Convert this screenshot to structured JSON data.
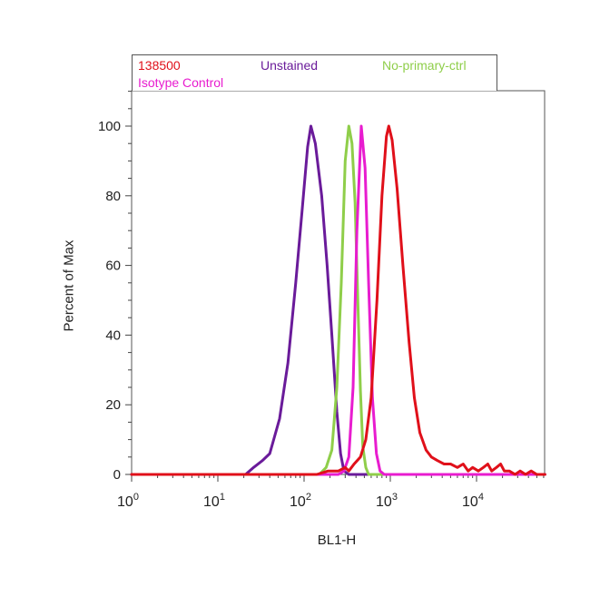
{
  "chart_data": {
    "type": "line",
    "title": "",
    "xlabel": "BL1-H",
    "ylabel": "Percent of Max",
    "x_scale": "log",
    "xlim": [
      1,
      63000
    ],
    "ylim": [
      0,
      110
    ],
    "x_ticks": [
      {
        "value": 1,
        "base": "10",
        "exp": "0"
      },
      {
        "value": 10,
        "base": "10",
        "exp": "1"
      },
      {
        "value": 100,
        "base": "10",
        "exp": "2"
      },
      {
        "value": 1000,
        "base": "10",
        "exp": "3"
      },
      {
        "value": 10000,
        "base": "10",
        "exp": "4"
      }
    ],
    "y_ticks": [
      0,
      20,
      40,
      60,
      80,
      100
    ],
    "legend_position": "top",
    "series": [
      {
        "name": "Unstained",
        "color": "#6a1b9a",
        "points": [
          [
            1,
            0
          ],
          [
            21,
            0
          ],
          [
            26,
            2
          ],
          [
            33,
            4
          ],
          [
            40,
            6
          ],
          [
            52,
            16
          ],
          [
            65,
            32
          ],
          [
            80,
            55
          ],
          [
            95,
            76
          ],
          [
            110,
            94
          ],
          [
            120,
            100
          ],
          [
            135,
            95
          ],
          [
            160,
            80
          ],
          [
            185,
            60
          ],
          [
            210,
            40
          ],
          [
            240,
            18
          ],
          [
            265,
            6
          ],
          [
            290,
            1
          ],
          [
            330,
            0
          ],
          [
            62000,
            0
          ]
        ]
      },
      {
        "name": "No-primary-ctrl",
        "color": "#8fce4a",
        "points": [
          [
            1,
            0
          ],
          [
            150,
            0
          ],
          [
            180,
            2
          ],
          [
            210,
            7
          ],
          [
            240,
            25
          ],
          [
            270,
            55
          ],
          [
            300,
            90
          ],
          [
            330,
            100
          ],
          [
            360,
            95
          ],
          [
            390,
            78
          ],
          [
            420,
            50
          ],
          [
            450,
            24
          ],
          [
            480,
            8
          ],
          [
            520,
            2
          ],
          [
            560,
            0
          ],
          [
            62000,
            0
          ]
        ]
      },
      {
        "name": "Isotype Control",
        "color": "#e81ccf",
        "points": [
          [
            1,
            0
          ],
          [
            250,
            0
          ],
          [
            290,
            1
          ],
          [
            330,
            5
          ],
          [
            370,
            25
          ],
          [
            410,
            70
          ],
          [
            460,
            100
          ],
          [
            510,
            88
          ],
          [
            560,
            55
          ],
          [
            620,
            22
          ],
          [
            690,
            6
          ],
          [
            760,
            1
          ],
          [
            850,
            0
          ],
          [
            62000,
            0
          ]
        ]
      },
      {
        "name": "138500",
        "color": "#e0101a",
        "points": [
          [
            1,
            0
          ],
          [
            140,
            0
          ],
          [
            190,
            1
          ],
          [
            250,
            1
          ],
          [
            300,
            2
          ],
          [
            330,
            1
          ],
          [
            380,
            3
          ],
          [
            450,
            5
          ],
          [
            520,
            10
          ],
          [
            600,
            22
          ],
          [
            700,
            50
          ],
          [
            800,
            80
          ],
          [
            900,
            97
          ],
          [
            960,
            100
          ],
          [
            1050,
            96
          ],
          [
            1200,
            82
          ],
          [
            1400,
            60
          ],
          [
            1650,
            38
          ],
          [
            1900,
            22
          ],
          [
            2200,
            12
          ],
          [
            2600,
            7
          ],
          [
            3000,
            5
          ],
          [
            3500,
            4
          ],
          [
            4200,
            3
          ],
          [
            5000,
            3
          ],
          [
            6000,
            2
          ],
          [
            7000,
            3
          ],
          [
            8000,
            1
          ],
          [
            9000,
            2
          ],
          [
            10500,
            1
          ],
          [
            12000,
            2
          ],
          [
            13500,
            3
          ],
          [
            15000,
            1
          ],
          [
            17000,
            2
          ],
          [
            19000,
            3
          ],
          [
            21000,
            1
          ],
          [
            24000,
            1
          ],
          [
            28000,
            0
          ],
          [
            32000,
            1
          ],
          [
            37000,
            0
          ],
          [
            43000,
            1
          ],
          [
            50000,
            0
          ],
          [
            62000,
            0
          ]
        ]
      }
    ]
  },
  "legend": {
    "entries": [
      {
        "label": "138500",
        "color": "#e0101a"
      },
      {
        "label": "Unstained",
        "color": "#6a1b9a"
      },
      {
        "label": "No-primary-ctrl",
        "color": "#8fce4a"
      },
      {
        "label": "Isotype Control",
        "color": "#e81ccf"
      }
    ]
  }
}
